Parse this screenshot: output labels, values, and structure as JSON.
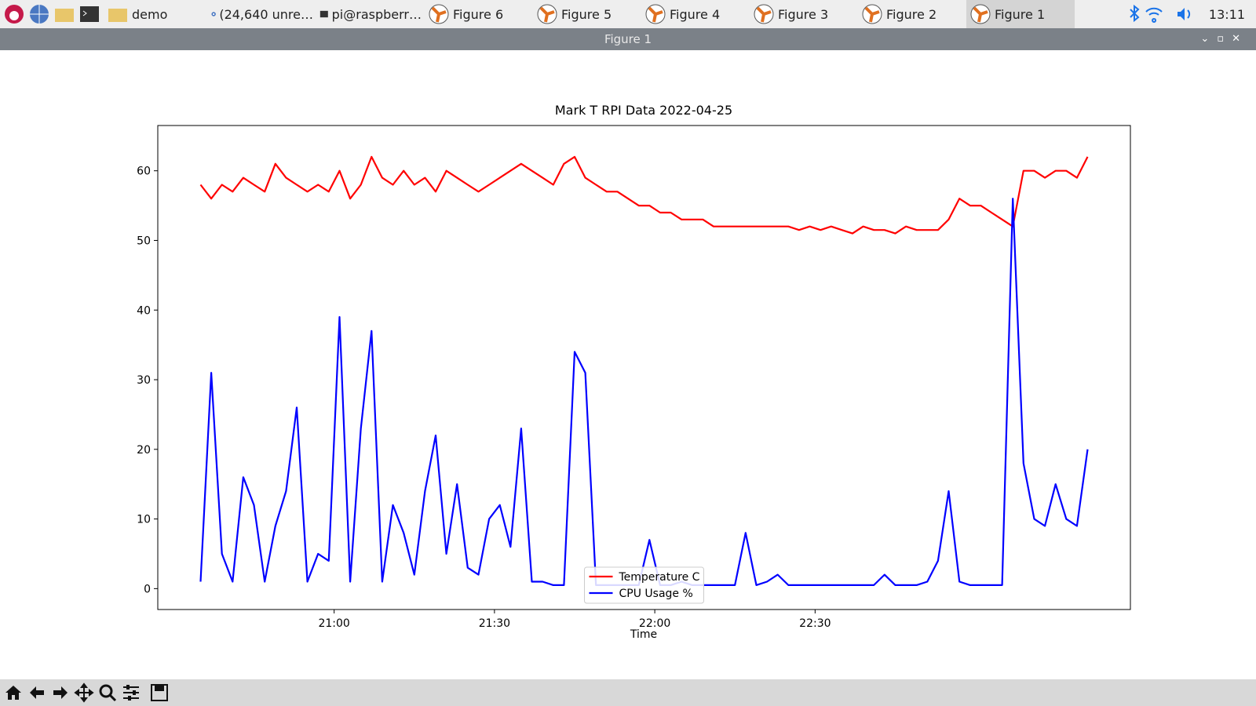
{
  "taskbar": {
    "items": [
      "demo",
      "(24,640 unre…",
      "pi@raspberr…",
      "Figure 6",
      "Figure 5",
      "Figure 4",
      "Figure 3",
      "Figure 2",
      "Figure 1"
    ],
    "clock": "13:11"
  },
  "window": {
    "title": "Figure 1"
  },
  "chart_data": {
    "type": "line",
    "title": "Mark T RPI Data 2022-04-25",
    "x_label": "Time",
    "x": [
      "20:35",
      "20:37",
      "20:39",
      "20:41",
      "20:43",
      "20:45",
      "20:47",
      "20:49",
      "20:51",
      "20:53",
      "20:55",
      "20:57",
      "20:59",
      "21:01",
      "21:03",
      "21:05",
      "21:07",
      "21:09",
      "21:11",
      "21:13",
      "21:15",
      "21:17",
      "21:19",
      "21:21",
      "21:23",
      "21:25",
      "21:27",
      "21:29",
      "21:31",
      "21:33",
      "21:35",
      "21:37",
      "21:39",
      "21:41",
      "21:43",
      "21:45",
      "21:47",
      "21:49",
      "21:51",
      "21:53",
      "21:55",
      "21:57",
      "21:59",
      "22:01",
      "22:03",
      "22:05",
      "22:07",
      "22:09",
      "22:11",
      "22:13",
      "22:15",
      "22:17",
      "22:19",
      "22:21",
      "22:23",
      "22:25",
      "22:27",
      "22:29",
      "22:31",
      "22:33",
      "22:35",
      "22:37",
      "22:39",
      "22:41",
      "22:43",
      "22:45",
      "22:47",
      "22:49",
      "22:51",
      "22:53",
      "22:55",
      "22:57",
      "22:59",
      "23:01",
      "23:03",
      "23:05",
      "23:07",
      "23:09",
      "23:11",
      "23:13",
      "23:15",
      "23:17",
      "23:19",
      "23:21"
    ],
    "series": [
      {
        "name": "Temperature C",
        "color": "#ff0000",
        "values": [
          58,
          56,
          58,
          57,
          59,
          58,
          57,
          61,
          59,
          58,
          57,
          58,
          57,
          60,
          56,
          58,
          62,
          59,
          58,
          60,
          58,
          59,
          57,
          60,
          59,
          58,
          57,
          58,
          59,
          60,
          61,
          60,
          59,
          58,
          61,
          62,
          59,
          58,
          57,
          57,
          56,
          55,
          55,
          54,
          54,
          53,
          53,
          53,
          52,
          52,
          52,
          52,
          52,
          52,
          52,
          52,
          51.5,
          52,
          51.5,
          52,
          51.5,
          51,
          52,
          51.5,
          51.5,
          51,
          52,
          51.5,
          51.5,
          51.5,
          53,
          56,
          55,
          55,
          54,
          53,
          52,
          60,
          60,
          59,
          60,
          60,
          59,
          62
        ]
      },
      {
        "name": "CPU Usage %",
        "color": "#0000ff",
        "values": [
          1,
          31,
          5,
          1,
          16,
          12,
          1,
          9,
          14,
          26,
          1,
          5,
          4,
          39,
          1,
          23,
          37,
          1,
          12,
          8,
          2,
          14,
          22,
          5,
          15,
          3,
          2,
          10,
          12,
          6,
          23,
          1,
          1,
          0.5,
          0.5,
          34,
          31,
          0.5,
          0.5,
          0.5,
          0.5,
          0.5,
          7,
          0.5,
          0.5,
          1,
          0.5,
          0.5,
          0.5,
          0.5,
          0.5,
          8,
          0.5,
          1,
          2,
          0.5,
          0.5,
          0.5,
          0.5,
          0.5,
          0.5,
          0.5,
          0.5,
          0.5,
          2,
          0.5,
          0.5,
          0.5,
          1,
          4,
          14,
          1,
          0.5,
          0.5,
          0.5,
          0.5,
          56,
          18,
          10,
          9,
          15,
          10,
          9,
          20
        ]
      }
    ],
    "xlim": [
      "20:27",
      "23:29"
    ],
    "xticks": [
      "21:00",
      "21:30",
      "22:00",
      "22:30"
    ],
    "ylim": [
      -3,
      66.5
    ],
    "yticks": [
      0,
      10,
      20,
      30,
      40,
      50,
      60
    ],
    "legend": "lower center",
    "grid": false
  }
}
